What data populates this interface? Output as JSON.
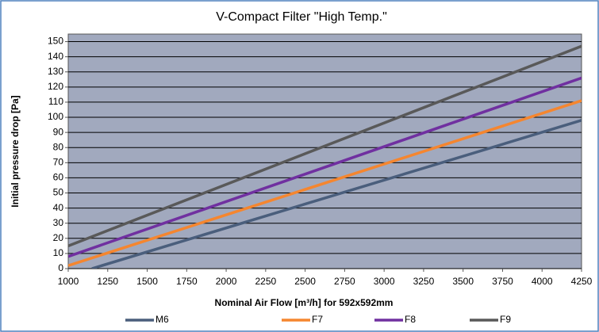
{
  "chart_data": {
    "type": "line",
    "title": "V-Compact Filter \"High Temp.\"",
    "xlabel": "Nominal Air Flow [m³/h] for 592x592mm",
    "ylabel": "Initial pressure drop [Pa]",
    "xlim": [
      1000,
      4250
    ],
    "xticks": [
      1000,
      1250,
      1500,
      1750,
      2000,
      2250,
      2500,
      2750,
      3000,
      3250,
      3500,
      3750,
      4000,
      4250
    ],
    "ylim": [
      0,
      155
    ],
    "yticks": [
      0,
      10,
      20,
      30,
      40,
      50,
      60,
      70,
      80,
      90,
      100,
      110,
      120,
      130,
      140,
      150
    ],
    "grid": true,
    "legend": "bottom",
    "series": [
      {
        "name": "M6",
        "color": "#4a5e7c",
        "x": [
          1150,
          4250
        ],
        "values": [
          0,
          98
        ]
      },
      {
        "name": "F7",
        "color": "#f5862f",
        "x": [
          1000,
          4250
        ],
        "values": [
          2,
          111
        ]
      },
      {
        "name": "F8",
        "color": "#7030a0",
        "x": [
          1000,
          4250
        ],
        "values": [
          8,
          126
        ]
      },
      {
        "name": "F9",
        "color": "#595959",
        "x": [
          1000,
          4250
        ],
        "values": [
          15,
          147
        ]
      }
    ]
  }
}
